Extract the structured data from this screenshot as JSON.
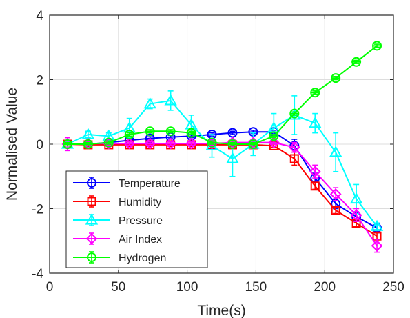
{
  "chart_data": {
    "type": "line",
    "xlabel": "Time(s)",
    "ylabel": "Normalised Value",
    "xlim": [
      0,
      250
    ],
    "ylim": [
      -4,
      4
    ],
    "xticks": [
      0,
      50,
      100,
      150,
      200,
      250
    ],
    "yticks": [
      -4,
      -2,
      0,
      2,
      4
    ],
    "grid": true,
    "legend_position": "bottom-left",
    "x": [
      13,
      28,
      43,
      58,
      73,
      88,
      103,
      118,
      133,
      148,
      163,
      178,
      193,
      208,
      223,
      238
    ],
    "series": [
      {
        "name": "Temperature",
        "color": "#0000ff",
        "marker": "circle",
        "values": [
          0.0,
          0.0,
          0.05,
          0.12,
          0.18,
          0.22,
          0.25,
          0.3,
          0.35,
          0.38,
          0.38,
          -0.05,
          -1.05,
          -1.85,
          -2.25,
          -2.6
        ],
        "errors": [
          0.05,
          0.05,
          0.05,
          0.05,
          0.05,
          0.05,
          0.05,
          0.05,
          0.05,
          0.05,
          0.05,
          0.2,
          0.15,
          0.15,
          0.15,
          0.15
        ]
      },
      {
        "name": "Humidity",
        "color": "#ff0000",
        "marker": "square",
        "values": [
          0.0,
          -0.02,
          -0.02,
          -0.02,
          -0.02,
          -0.02,
          -0.02,
          -0.02,
          -0.02,
          -0.02,
          -0.05,
          -0.45,
          -1.3,
          -2.05,
          -2.45,
          -2.85
        ],
        "errors": [
          0.05,
          0.05,
          0.05,
          0.05,
          0.05,
          0.05,
          0.05,
          0.05,
          0.05,
          0.05,
          0.05,
          0.2,
          0.1,
          0.1,
          0.1,
          0.1
        ]
      },
      {
        "name": "Pressure",
        "color": "#00ffff",
        "marker": "triangle",
        "values": [
          0.0,
          0.3,
          0.25,
          0.5,
          1.25,
          1.35,
          0.6,
          -0.05,
          -0.45,
          0.0,
          0.5,
          0.9,
          0.65,
          -0.25,
          -1.7,
          -2.55
        ],
        "errors": [
          0.05,
          0.1,
          0.1,
          0.3,
          0.15,
          0.3,
          0.3,
          0.35,
          0.55,
          0.35,
          0.45,
          0.6,
          0.3,
          0.6,
          0.45,
          0.1
        ]
      },
      {
        "name": "Air Index",
        "color": "#ff00ff",
        "marker": "diamond",
        "values": [
          0.0,
          0.02,
          0.02,
          0.02,
          0.02,
          0.02,
          0.02,
          0.02,
          0.05,
          0.05,
          0.05,
          -0.1,
          -0.85,
          -1.55,
          -2.2,
          -3.15
        ],
        "errors": [
          0.2,
          0.05,
          0.05,
          0.05,
          0.05,
          0.05,
          0.05,
          0.05,
          0.05,
          0.05,
          0.05,
          0.15,
          0.2,
          0.2,
          0.2,
          0.2
        ]
      },
      {
        "name": "Hydrogen",
        "color": "#00ff00",
        "marker": "circle-bar",
        "values": [
          0.0,
          0.0,
          0.05,
          0.3,
          0.4,
          0.4,
          0.35,
          0.05,
          0.0,
          0.0,
          0.25,
          0.95,
          1.6,
          2.05,
          2.55,
          3.05
        ],
        "errors": [
          0.05,
          0.05,
          0.05,
          0.05,
          0.05,
          0.05,
          0.05,
          0.05,
          0.05,
          0.05,
          0.05,
          0.05,
          0.05,
          0.05,
          0.05,
          0.05
        ]
      }
    ]
  }
}
